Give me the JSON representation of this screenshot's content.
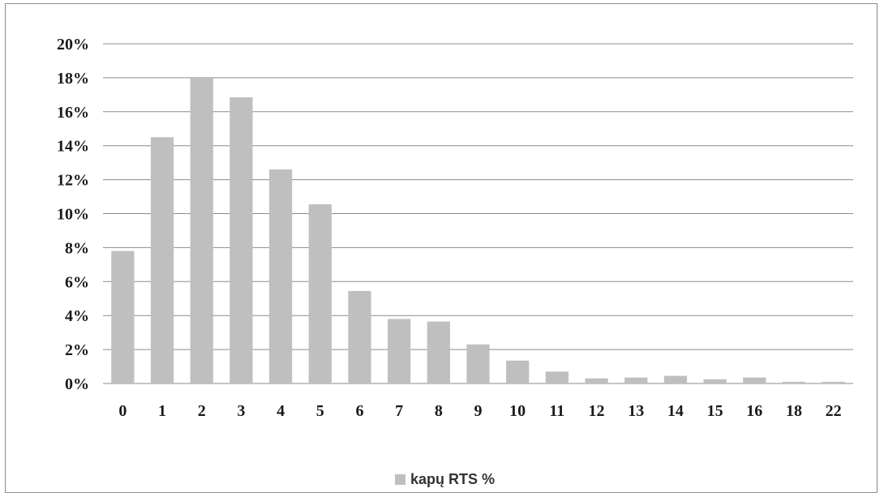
{
  "chart_data": {
    "type": "bar",
    "title": "",
    "xlabel": "",
    "ylabel": "",
    "categories": [
      "0",
      "1",
      "2",
      "3",
      "4",
      "5",
      "6",
      "7",
      "8",
      "9",
      "10",
      "11",
      "12",
      "13",
      "14",
      "15",
      "16",
      "18",
      "22"
    ],
    "series": [
      {
        "name": "kapų RTS %",
        "values": [
          7.8,
          14.5,
          18.0,
          16.85,
          12.6,
          10.55,
          5.45,
          3.8,
          3.65,
          2.3,
          1.35,
          0.7,
          0.3,
          0.35,
          0.45,
          0.25,
          0.35,
          0.1,
          0.1
        ]
      }
    ],
    "ylim": [
      0,
      20
    ],
    "ytick_step": 2,
    "ytick_labels": [
      "0%",
      "2%",
      "4%",
      "6%",
      "8%",
      "10%",
      "12%",
      "14%",
      "16%",
      "18%",
      "20%"
    ],
    "grid": true,
    "legend_position": "bottom-center",
    "colors": {
      "bar": "#bfbfbf",
      "grid": "#8c8c8c",
      "axis": "#8c8c8c"
    }
  }
}
